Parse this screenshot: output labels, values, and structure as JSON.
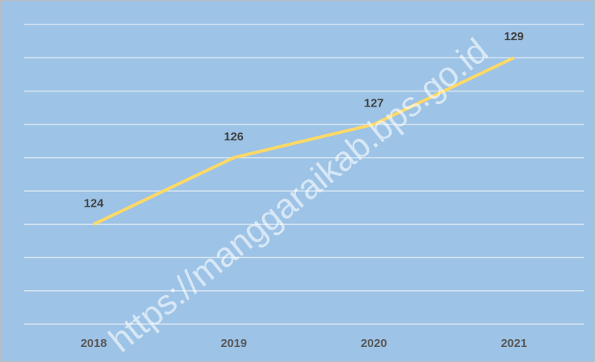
{
  "chart_data": {
    "type": "line",
    "categories": [
      "2018",
      "2019",
      "2020",
      "2021"
    ],
    "values": [
      124,
      126,
      127,
      129
    ],
    "color": "#ffd966",
    "ylim": [
      121,
      130
    ],
    "yticks": [
      121,
      122,
      123,
      124,
      125,
      126,
      127,
      128,
      129,
      130
    ],
    "grid": true,
    "watermark": "https://manggaraikab.bps.go.id"
  }
}
